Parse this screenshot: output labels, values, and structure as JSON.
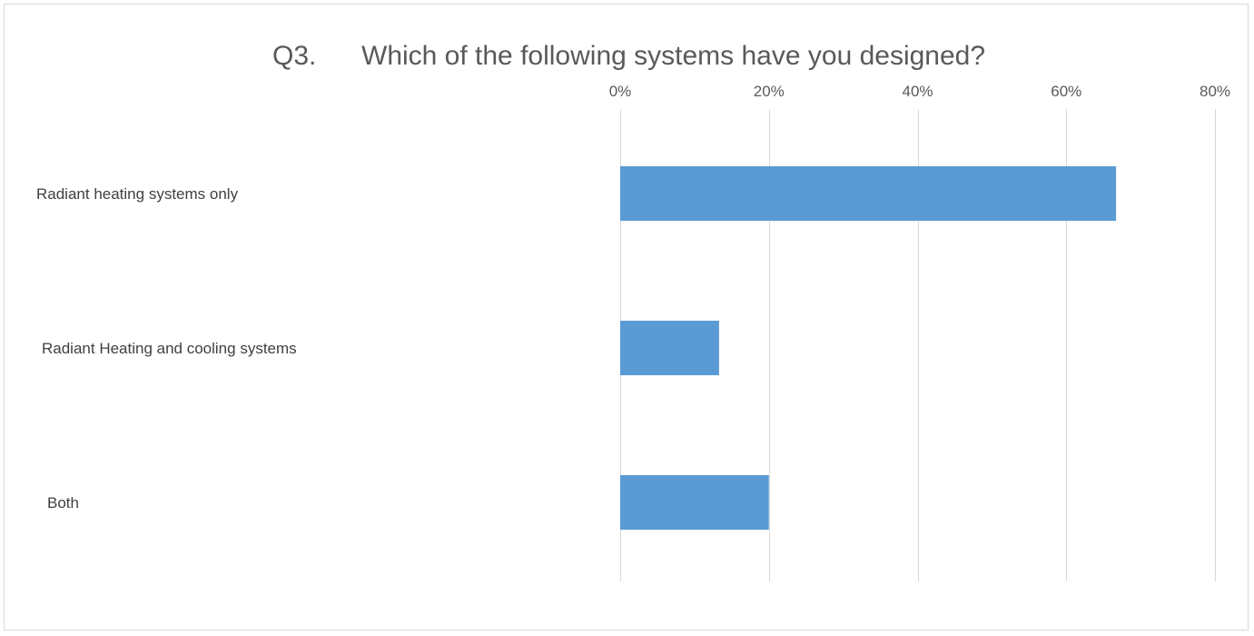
{
  "chart_data": {
    "type": "bar",
    "orientation": "horizontal",
    "title_prefix": "Q3.",
    "title": "Which of the following systems have you designed?",
    "categories": [
      "Radiant heating systems only",
      "Radiant Heating and cooling systems",
      "Both"
    ],
    "values": [
      0.667,
      0.133,
      0.2
    ],
    "xlim": [
      0,
      0.8
    ],
    "xticks": [
      0,
      0.2,
      0.4,
      0.6,
      0.8
    ],
    "xtick_labels": [
      "0%",
      "20%",
      "40%",
      "60%",
      "80%"
    ],
    "xlabel": "",
    "ylabel": "",
    "x_axis_position": "top",
    "grid": true,
    "legend": "none",
    "bar_color": "#5b9bd5",
    "grid_color": "#d9d9d9"
  }
}
